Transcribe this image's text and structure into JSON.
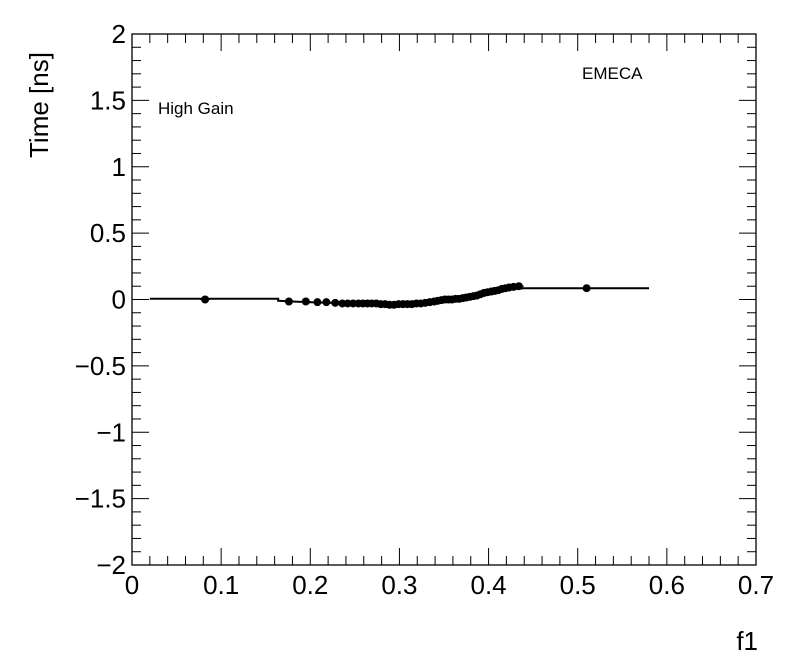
{
  "chart_data": {
    "type": "scatter",
    "title": "",
    "xlabel": "f1",
    "ylabel": "Time [ns]",
    "xlim": [
      0,
      0.7
    ],
    "ylim": [
      -2,
      2
    ],
    "grid": false,
    "x_ticks": [
      0,
      0.1,
      0.2,
      0.3,
      0.4,
      0.5,
      0.6,
      0.7
    ],
    "x_tick_labels": [
      "0",
      "0.1",
      "0.2",
      "0.3",
      "0.4",
      "0.5",
      "0.6",
      "0.7"
    ],
    "y_ticks": [
      -2,
      -1.5,
      -1,
      -0.5,
      0,
      0.5,
      1,
      1.5,
      2
    ],
    "y_tick_labels": [
      "−2",
      "−1.5",
      "−1",
      "−0.5",
      "0",
      "0.5",
      "1",
      "1.5",
      "2"
    ],
    "annotations": [
      "High Gain",
      "EMECA"
    ],
    "series": [
      {
        "x": [
          0.082,
          0.176,
          0.195,
          0.208,
          0.218,
          0.228,
          0.236,
          0.242,
          0.248,
          0.254,
          0.259,
          0.264,
          0.269,
          0.274,
          0.279,
          0.284,
          0.289,
          0.294,
          0.299,
          0.304,
          0.309,
          0.314,
          0.319,
          0.324,
          0.329,
          0.334,
          0.339,
          0.343,
          0.347,
          0.351,
          0.355,
          0.359,
          0.363,
          0.367,
          0.371,
          0.375,
          0.379,
          0.383,
          0.387,
          0.391,
          0.395,
          0.399,
          0.403,
          0.407,
          0.411,
          0.415,
          0.419,
          0.423,
          0.428,
          0.434,
          0.51
        ],
        "y": [
          0.0,
          -0.015,
          -0.015,
          -0.02,
          -0.02,
          -0.025,
          -0.03,
          -0.03,
          -0.03,
          -0.03,
          -0.03,
          -0.03,
          -0.03,
          -0.03,
          -0.035,
          -0.035,
          -0.04,
          -0.04,
          -0.035,
          -0.035,
          -0.035,
          -0.035,
          -0.03,
          -0.03,
          -0.025,
          -0.02,
          -0.015,
          -0.01,
          -0.005,
          0.0,
          0.0,
          0.0,
          0.005,
          0.005,
          0.01,
          0.015,
          0.02,
          0.025,
          0.03,
          0.04,
          0.05,
          0.055,
          0.06,
          0.065,
          0.07,
          0.08,
          0.085,
          0.09,
          0.095,
          0.1,
          0.085
        ]
      }
    ],
    "fit_line": {
      "x": [
        0.02,
        0.164,
        0.164,
        0.18,
        0.2,
        0.22,
        0.24,
        0.26,
        0.28,
        0.3,
        0.32,
        0.34,
        0.36,
        0.38,
        0.4,
        0.42,
        0.44,
        0.58
      ],
      "y": [
        0.005,
        0.005,
        -0.01,
        -0.015,
        -0.02,
        -0.025,
        -0.03,
        -0.035,
        -0.035,
        -0.035,
        -0.025,
        -0.01,
        0.005,
        0.025,
        0.05,
        0.075,
        0.085,
        0.085
      ]
    }
  }
}
